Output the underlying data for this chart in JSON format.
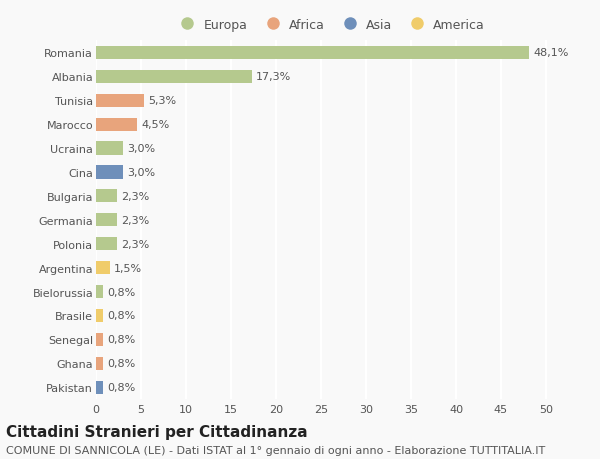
{
  "countries": [
    "Romania",
    "Albania",
    "Tunisia",
    "Marocco",
    "Ucraina",
    "Cina",
    "Bulgaria",
    "Germania",
    "Polonia",
    "Argentina",
    "Bielorussia",
    "Brasile",
    "Senegal",
    "Ghana",
    "Pakistan"
  ],
  "values": [
    48.1,
    17.3,
    5.3,
    4.5,
    3.0,
    3.0,
    2.3,
    2.3,
    2.3,
    1.5,
    0.8,
    0.8,
    0.8,
    0.8,
    0.8
  ],
  "labels": [
    "48,1%",
    "17,3%",
    "5,3%",
    "4,5%",
    "3,0%",
    "3,0%",
    "2,3%",
    "2,3%",
    "2,3%",
    "1,5%",
    "0,8%",
    "0,8%",
    "0,8%",
    "0,8%",
    "0,8%"
  ],
  "continent": [
    "Europa",
    "Europa",
    "Africa",
    "Africa",
    "Europa",
    "Asia",
    "Europa",
    "Europa",
    "Europa",
    "America",
    "Europa",
    "America",
    "Africa",
    "Africa",
    "Asia"
  ],
  "colors": {
    "Europa": "#b5c98e",
    "Africa": "#e8a47c",
    "Asia": "#6e8fba",
    "America": "#f0cc6a"
  },
  "legend_order": [
    "Europa",
    "Africa",
    "Asia",
    "America"
  ],
  "xlim": [
    0,
    52
  ],
  "xticks": [
    0,
    5,
    10,
    15,
    20,
    25,
    30,
    35,
    40,
    45,
    50
  ],
  "title": "Cittadini Stranieri per Cittadinanza",
  "subtitle": "COMUNE DI SANNICOLA (LE) - Dati ISTAT al 1° gennaio di ogni anno - Elaborazione TUTTITALIA.IT",
  "bg_color": "#f9f9f9",
  "grid_color": "#ffffff",
  "bar_height": 0.55,
  "title_fontsize": 11,
  "subtitle_fontsize": 8,
  "label_fontsize": 8,
  "tick_fontsize": 8,
  "legend_fontsize": 9
}
